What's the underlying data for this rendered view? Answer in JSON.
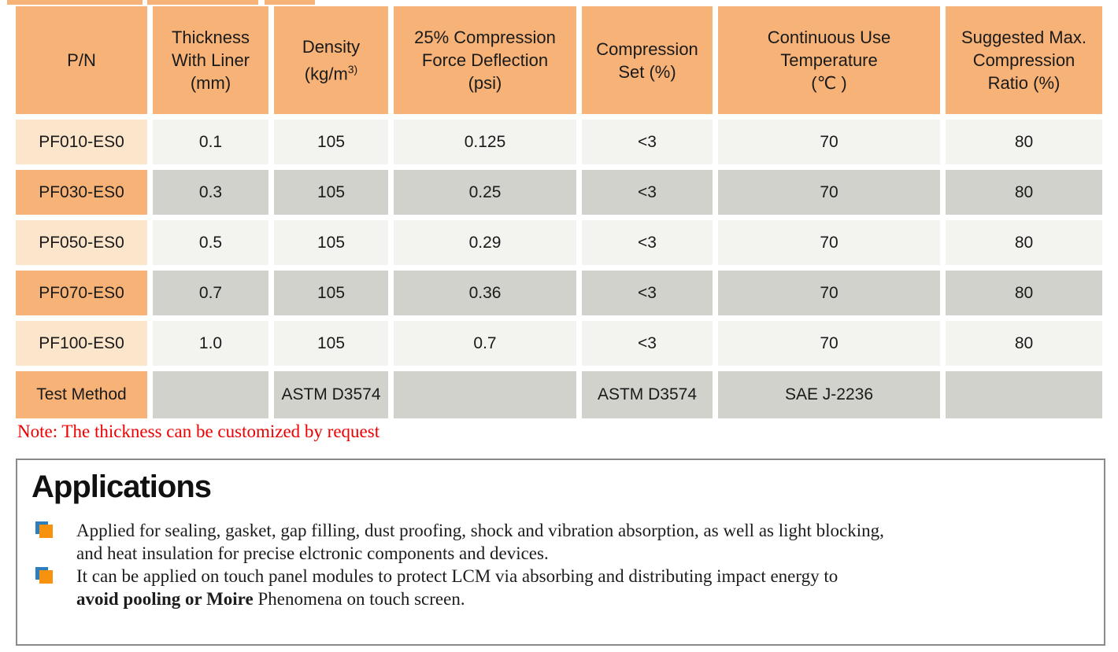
{
  "colors": {
    "header_orange": "#F7B377",
    "pn_light": "#FBE5CB",
    "cell_light": "#F3F3EF",
    "cell_dark": "#D2D2CC",
    "note_red": "#EE0000",
    "box_border": "#8A8A8A",
    "bullet_orange": "#F6920E",
    "bullet_blue": "#2B7FBF"
  },
  "table": {
    "columns": [
      {
        "id": "pn",
        "header_lines": [
          "P/N"
        ]
      },
      {
        "id": "thickness-with-liner",
        "header_lines": [
          "Thickness",
          "With Liner",
          "(mm)"
        ]
      },
      {
        "id": "density",
        "header_lines": [
          "Density",
          {
            "pre": "(kg/m",
            "sup": "3)"
          }
        ]
      },
      {
        "id": "compression-force-deflection",
        "header_lines": [
          "25% Compression",
          "Force Deflection",
          "(psi)"
        ]
      },
      {
        "id": "compression-set",
        "header_lines": [
          "Compression",
          "Set (%)"
        ]
      },
      {
        "id": "continuous-use-temperature",
        "header_lines": [
          "Continuous Use",
          "Temperature",
          "(℃ )"
        ]
      },
      {
        "id": "suggested-max-compression-ratio",
        "header_lines": [
          "Suggested Max.",
          "Compression",
          "Ratio (%)"
        ]
      }
    ],
    "rows": [
      {
        "pn": "PF010-ES0",
        "values": [
          "0.1",
          "105",
          "0.125",
          "<3",
          "70",
          "80"
        ]
      },
      {
        "pn": "PF030-ES0",
        "values": [
          "0.3",
          "105",
          "0.25",
          "<3",
          "70",
          "80"
        ]
      },
      {
        "pn": "PF050-ES0",
        "values": [
          "0.5",
          "105",
          "0.29",
          "<3",
          "70",
          "80"
        ]
      },
      {
        "pn": "PF070-ES0",
        "values": [
          "0.7",
          "105",
          "0.36",
          "<3",
          "70",
          "80"
        ]
      },
      {
        "pn": "PF100-ES0",
        "values": [
          "1.0",
          "105",
          "0.7",
          "<3",
          "70",
          "80"
        ]
      },
      {
        "pn": "Test Method",
        "values": [
          "",
          "ASTM D3574",
          "",
          "ASTM D3574",
          "SAE J-2236",
          ""
        ]
      }
    ]
  },
  "note": {
    "text": "Note: The thickness can be customized by request"
  },
  "applications": {
    "title": "Applications",
    "bullet_icon": "overlapping-squares-icon",
    "items": [
      {
        "lines": [
          [
            {
              "t": "Applied for sealing, gasket, gap filling, dust proofing, shock and vibration absorption, as well as light blocking,"
            }
          ],
          [
            {
              "t": "and heat insulation for precise elctronic components and devices."
            }
          ]
        ]
      },
      {
        "lines": [
          [
            {
              "t": "It can be applied on touch panel modules to protect LCM via absorbing and distributing impact energy to"
            }
          ],
          [
            {
              "t": "avoid pooling or Moire",
              "b": true
            },
            {
              "t": " Phenomena on touch screen."
            }
          ]
        ]
      }
    ]
  }
}
